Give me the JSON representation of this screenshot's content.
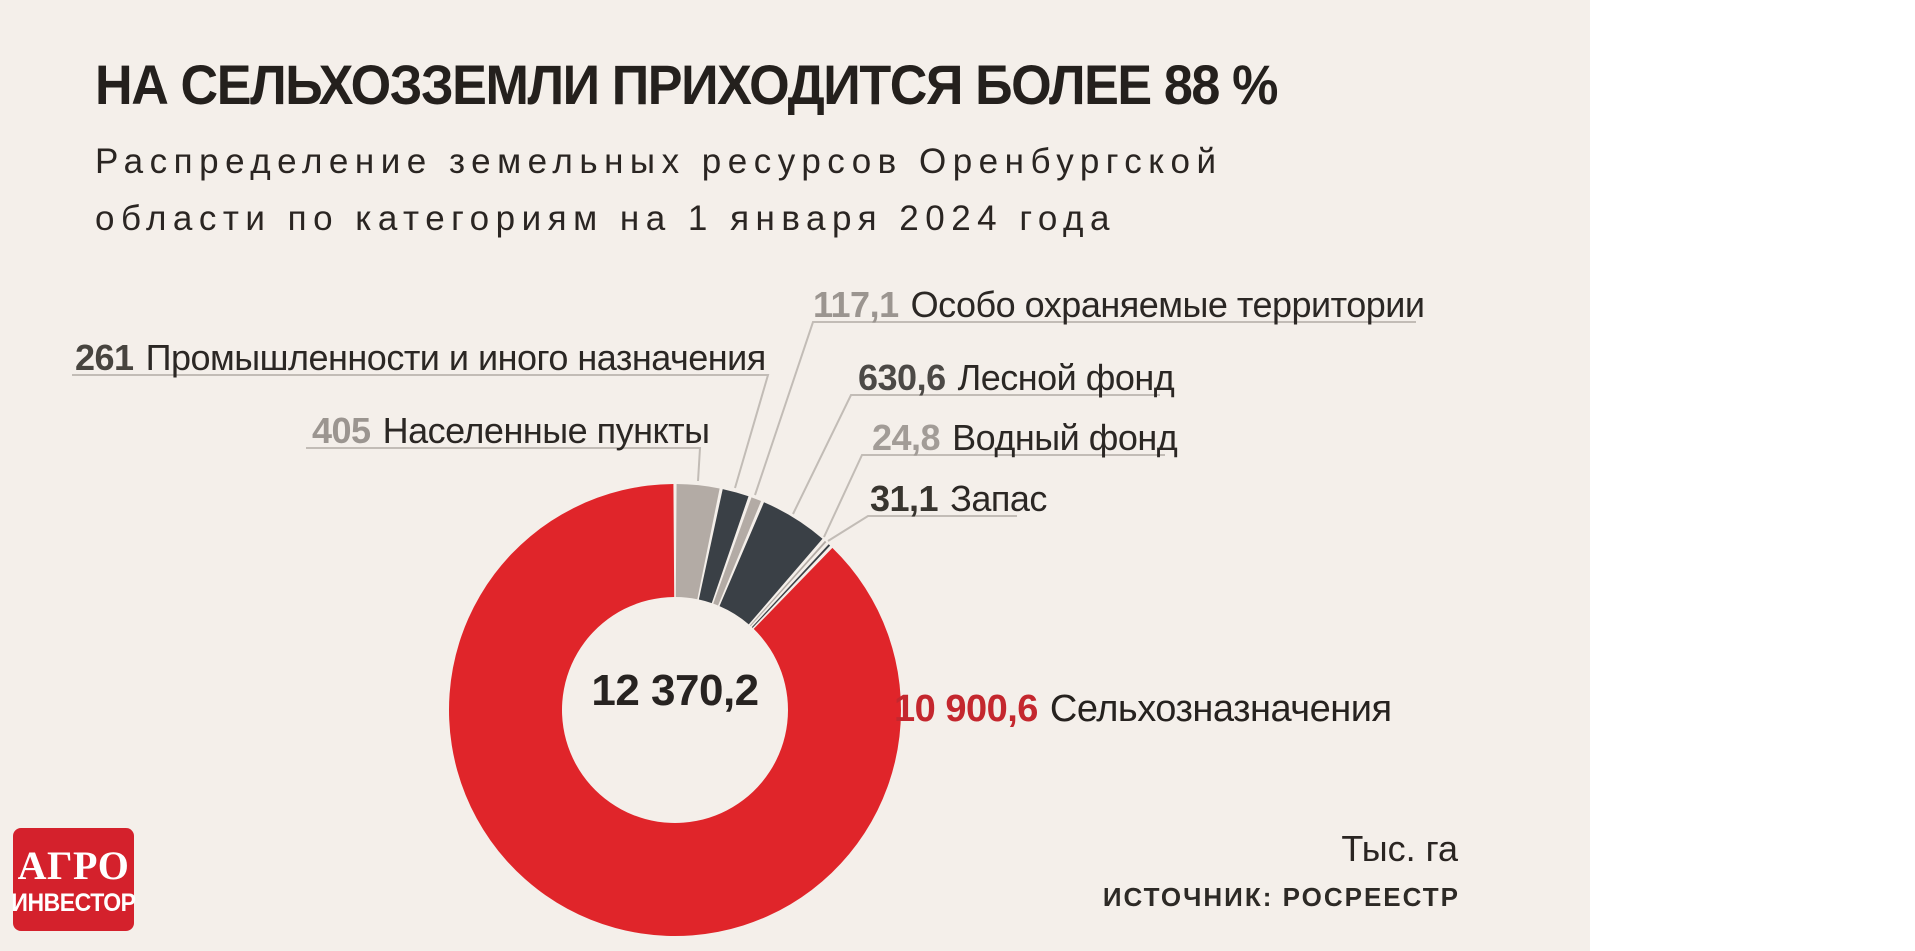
{
  "title": "НА СЕЛЬХОЗЗЕМЛИ ПРИХОДИТСЯ БОЛЕЕ 88 %",
  "subtitle_line1": "Распределение земельных ресурсов Оренбургской",
  "subtitle_line2": "области по категориям на 1 января 2024 года",
  "unit_label": "Тыс. га",
  "source_label": "ИСТОЧНИК: РОСРЕЕСТР",
  "logo": {
    "line1": "АГРО",
    "line2": "ИНВЕСТОР"
  },
  "colors": {
    "background": "#f4efea",
    "red_slice": "#e0252a",
    "dark_slice": "#3a4046",
    "taupe_slice": "#b3aba5",
    "leader_line": "#c2bcb6",
    "text_dark": "#2b2724"
  },
  "chart_data": {
    "type": "pie",
    "subtype": "donut",
    "title": "НА СЕЛЬХОЗЗЕМЛИ ПРИХОДИТСЯ БОЛЕЕ 88 %",
    "subtitle": "Распределение земельных ресурсов Оренбургской области по категориям на 1 января 2024 года",
    "unit": "Тыс. га",
    "source": "РОСРЕЕСТР",
    "total": 12370.2,
    "total_display": "12 370,2",
    "start_angle_deg": 0,
    "direction": "clockwise",
    "inner_radius_ratio": 0.5,
    "legend_position": "callouts",
    "slices": [
      {
        "name": "Населенные пункты",
        "value": 405,
        "display": "405",
        "color": "#b3aba5",
        "value_color": "#9b9590"
      },
      {
        "name": "Промышленности и иного назначения",
        "value": 261,
        "display": "261",
        "color": "#3a4046",
        "value_color": "#47443f"
      },
      {
        "name": "Особо охраняемые территории",
        "value": 117.1,
        "display": "117,1",
        "color": "#b3aba5",
        "value_color": "#9b9590"
      },
      {
        "name": "Лесной фонд",
        "value": 630.6,
        "display": "630,6",
        "color": "#3a4046",
        "value_color": "#4c4946"
      },
      {
        "name": "Водный фонд",
        "value": 24.8,
        "display": "24,8",
        "color": "#b3aba5",
        "value_color": "#a29c97"
      },
      {
        "name": "Запас",
        "value": 31.1,
        "display": "31,1",
        "color": "#3a4046",
        "value_color": "#38352f"
      },
      {
        "name": "Сельхозназначения",
        "value": 10900.6,
        "display": "10 900,6",
        "color": "#e0252a",
        "value_color": "#c4272e"
      }
    ]
  }
}
